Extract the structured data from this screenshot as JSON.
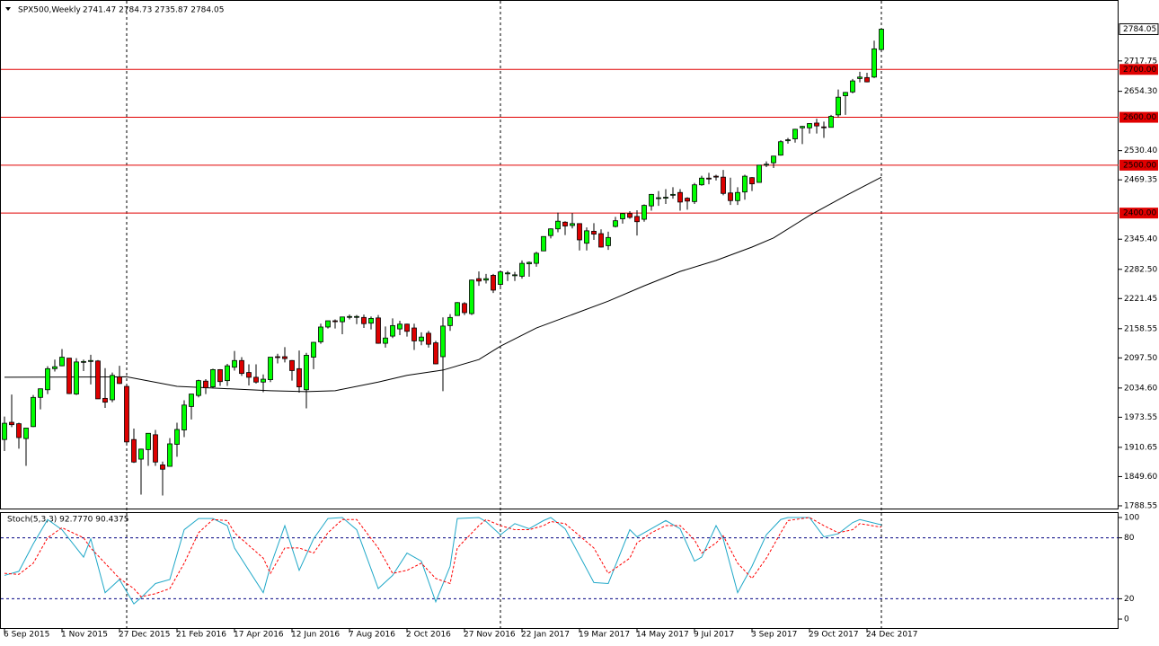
{
  "chart_data": [
    {
      "type": "candlestick",
      "title": "SPX500,Weekly",
      "subtitle": "2741.47 2784.73 2735.87 2784.05",
      "categories": [
        "6 Sep 2015",
        null,
        null,
        null,
        null,
        null,
        null,
        null,
        "1 Nov 2015",
        null,
        null,
        null,
        null,
        null,
        null,
        null,
        "27 Dec 2015",
        null,
        null,
        null,
        null,
        null,
        null,
        null,
        "21 Feb 2016",
        null,
        null,
        null,
        null,
        null,
        null,
        null,
        "17 Apr 2016",
        null,
        null,
        null,
        null,
        null,
        null,
        null,
        "12 Jun 2016",
        null,
        null,
        null,
        null,
        null,
        null,
        null,
        "7 Aug 2016",
        null,
        null,
        null,
        null,
        null,
        null,
        null,
        "2 Oct 2016",
        null,
        null,
        null,
        null,
        null,
        null,
        null,
        "27 Nov 2016",
        null,
        null,
        null,
        null,
        null,
        null,
        null,
        "22 Jan 2017",
        null,
        null,
        null,
        null,
        null,
        null,
        null,
        "19 Mar 2017",
        null,
        null,
        null,
        null,
        null,
        null,
        null,
        "14 May 2017",
        null,
        null,
        null,
        null,
        null,
        null,
        null,
        "9 Jul 2017",
        null,
        null,
        null,
        null,
        null,
        null,
        null,
        "3 Sep 2017",
        null,
        null,
        null,
        null,
        null,
        null,
        null,
        "29 Oct 2017",
        null,
        null,
        null,
        null,
        null,
        null,
        null,
        "24 Dec 2017",
        null,
        null
      ],
      "open": [
        1927,
        1963,
        1960,
        1929,
        1954,
        2015,
        2031,
        2075,
        2081,
        2097,
        2022,
        2089,
        2090,
        2091,
        2013,
        2010,
        2058,
        2038,
        1927,
        1886,
        1906,
        1937,
        1874,
        1871,
        1917,
        1947,
        1996,
        2019,
        2049,
        2037,
        2073,
        2050,
        2078,
        2092,
        2067,
        2057,
        2047,
        2052,
        2100,
        2100,
        2092,
        2075,
        2031,
        2099,
        2131,
        2162,
        2175,
        2173,
        2183,
        2184,
        2182,
        2170,
        2181,
        2128,
        2143,
        2158,
        2168,
        2160,
        2133,
        2149,
        2129,
        2100,
        2165,
        2186,
        2211,
        2190,
        2263,
        2260,
        2270,
        2251,
        2273,
        2270,
        2268,
        2294,
        2295,
        2321,
        2353,
        2367,
        2381,
        2374,
        2378,
        2337,
        2362,
        2357,
        2332,
        2372,
        2388,
        2399,
        2393,
        2387,
        2415,
        2432,
        2432,
        2439,
        2443,
        2431,
        2424,
        2459,
        2473,
        2477,
        2475,
        2442,
        2426,
        2444,
        2474,
        2464,
        2501,
        2505,
        2521,
        2551,
        2555,
        2578,
        2578,
        2588,
        2580,
        2579,
        2605,
        2645,
        2653,
        2681,
        2683,
        2684,
        2741.47
      ],
      "high": [
        1975,
        2021,
        1962,
        1951,
        2020,
        2033,
        2080,
        2094,
        2116,
        2097,
        2097,
        2094,
        2104,
        2093,
        2076,
        2067,
        2081,
        2038,
        1950,
        1908,
        1940,
        1947,
        1881,
        1930,
        1962,
        2009,
        2022,
        2052,
        2053,
        2075,
        2074,
        2085,
        2112,
        2099,
        2084,
        2084,
        2063,
        2099,
        2106,
        2120,
        2093,
        2113,
        2108,
        2131,
        2169,
        2175,
        2178,
        2183,
        2188,
        2187,
        2188,
        2184,
        2187,
        2163,
        2180,
        2175,
        2169,
        2169,
        2151,
        2154,
        2133,
        2182,
        2189,
        2214,
        2214,
        2261,
        2278,
        2273,
        2273,
        2277,
        2279,
        2277,
        2301,
        2299,
        2319,
        2351,
        2368,
        2401,
        2383,
        2400,
        2378,
        2370,
        2379,
        2366,
        2361,
        2392,
        2400,
        2404,
        2406,
        2418,
        2440,
        2446,
        2450,
        2454,
        2450,
        2433,
        2463,
        2478,
        2484,
        2480,
        2490,
        2474,
        2454,
        2480,
        2475,
        2500,
        2508,
        2519,
        2552,
        2557,
        2576,
        2582,
        2588,
        2597,
        2591,
        2605,
        2658,
        2653,
        2680,
        2695,
        2693,
        2760,
        2784.73
      ],
      "low": [
        1903,
        1953,
        1908,
        1872,
        1953,
        1990,
        2022,
        2069,
        2080,
        2022,
        2020,
        2070,
        2042,
        2012,
        1993,
        2005,
        2043,
        1918,
        1878,
        1812,
        1872,
        1872,
        1810,
        1871,
        1891,
        1932,
        1969,
        2015,
        2022,
        2034,
        2039,
        2039,
        2071,
        2060,
        2040,
        2044,
        2026,
        2047,
        2086,
        2088,
        2050,
        2025,
        1992,
        2074,
        2127,
        2159,
        2159,
        2147,
        2178,
        2168,
        2160,
        2157,
        2127,
        2119,
        2139,
        2145,
        2142,
        2114,
        2124,
        2119,
        2084,
        2028,
        2154,
        2186,
        2187,
        2187,
        2248,
        2253,
        2233,
        2245,
        2258,
        2258,
        2263,
        2267,
        2288,
        2321,
        2347,
        2360,
        2354,
        2368,
        2322,
        2322,
        2344,
        2328,
        2323,
        2370,
        2378,
        2388,
        2353,
        2382,
        2405,
        2415,
        2419,
        2430,
        2405,
        2407,
        2419,
        2457,
        2460,
        2468,
        2437,
        2417,
        2417,
        2428,
        2446,
        2464,
        2496,
        2494,
        2520,
        2545,
        2547,
        2544,
        2566,
        2566,
        2557,
        2579,
        2600,
        2605,
        2650,
        2673,
        2673,
        2682,
        2735.87
      ],
      "close": [
        1961,
        1958,
        1931,
        1951,
        2015,
        2033,
        2075,
        2079,
        2099,
        2023,
        2089,
        2090,
        2092,
        2012,
        2005,
        2061,
        2044,
        1922,
        1880,
        1907,
        1940,
        1880,
        1865,
        1918,
        1948,
        1999,
        2022,
        2050,
        2035,
        2073,
        2048,
        2081,
        2092,
        2065,
        2057,
        2047,
        2053,
        2099,
        2099,
        2096,
        2071,
        2037,
        2103,
        2130,
        2162,
        2175,
        2174,
        2183,
        2184,
        2184,
        2169,
        2180,
        2128,
        2139,
        2165,
        2168,
        2153,
        2133,
        2141,
        2126,
        2085,
        2164,
        2182,
        2213,
        2192,
        2260,
        2258,
        2263,
        2239,
        2277,
        2275,
        2271,
        2295,
        2297,
        2316,
        2351,
        2367,
        2383,
        2373,
        2378,
        2344,
        2363,
        2356,
        2329,
        2349,
        2384,
        2399,
        2391,
        2382,
        2416,
        2439,
        2432,
        2433,
        2439,
        2423,
        2425,
        2459,
        2473,
        2472,
        2476,
        2441,
        2426,
        2443,
        2477,
        2461,
        2500,
        2502,
        2519,
        2549,
        2553,
        2575,
        2581,
        2587,
        2582,
        2579,
        2602,
        2642,
        2652,
        2676,
        2684,
        2674,
        2743,
        2784.05
      ],
      "up_color": "#00ff00",
      "down_color": "#dd0000",
      "ylim": [
        1781,
        2845
      ],
      "yticks": [
        1788.55,
        {
          "value": 1849.6,
          "label": "1849.60"
        },
        1910.65,
        1973.55,
        {
          "value": 2034.6,
          "label": "2034.60"
        },
        {
          "value": 2097.5,
          "label": "2097.50"
        },
        2158.55,
        2221.45,
        {
          "value": 2282.5,
          "label": "2282.50"
        },
        {
          "value": 2345.4,
          "label": "2345.40"
        },
        2469.35,
        {
          "value": 2530.4,
          "label": "2530.40"
        },
        {
          "value": 2654.3,
          "label": "2654.30"
        },
        2717.75
      ],
      "levels": [
        {
          "value": 2700,
          "label": "2700.00"
        },
        {
          "value": 2600,
          "label": "2600.00"
        },
        {
          "value": 2500,
          "label": "2500.00"
        },
        {
          "value": 2400,
          "label": "2400.00"
        }
      ],
      "level_color": "#e00000",
      "ma": {
        "x": [
          0,
          17,
          24,
          37,
          42,
          46,
          52,
          56,
          61,
          66,
          69,
          74,
          79,
          84,
          89,
          94,
          99,
          104,
          107,
          112,
          117,
          122
        ],
        "values": [
          2057,
          2058,
          2038,
          2029,
          2027,
          2029,
          2047,
          2061,
          2072,
          2094,
          2122,
          2160,
          2188,
          2216,
          2248,
          2278,
          2301,
          2329,
          2348,
          2395,
          2436,
          2475
        ],
        "color": "#000000"
      }
    },
    {
      "type": "line",
      "title": "Stoch(5,3,3) 92.7770 90.4375",
      "x": [
        0,
        2,
        4,
        6,
        8,
        11,
        12,
        14,
        16,
        18,
        19,
        21,
        23,
        25,
        27,
        29,
        31,
        32,
        36,
        37,
        39,
        41,
        43,
        45,
        47,
        49,
        52,
        54,
        56,
        58,
        60,
        62,
        63,
        66,
        67,
        69,
        71,
        73,
        75,
        76,
        78,
        82,
        84,
        87,
        88,
        90,
        92,
        94,
        96,
        97,
        99,
        100,
        102,
        104,
        106,
        108,
        109,
        112,
        114,
        116,
        118,
        119,
        122
      ],
      "series": [
        {
          "color": "#20a8c8",
          "values": [
            43,
            47,
            74,
            98,
            88,
            61,
            79,
            26,
            39,
            15,
            21,
            35,
            39,
            88,
            99,
            99,
            92,
            70,
            26,
            52,
            92,
            48,
            79,
            99,
            100,
            88,
            30,
            43,
            65,
            57,
            17,
            52,
            99,
            100,
            96,
            83,
            94,
            89,
            97,
            100,
            89,
            36,
            35,
            88,
            81,
            89,
            97,
            89,
            57,
            61,
            92,
            79,
            26,
            52,
            83,
            98,
            100,
            100,
            81,
            84,
            95,
            98,
            92.777
          ]
        },
        {
          "color": "#ff0000",
          "dashed": true,
          "values": [
            45,
            44,
            55,
            80,
            90,
            80,
            70,
            55,
            40,
            30,
            22,
            25,
            30,
            55,
            85,
            98,
            97,
            85,
            60,
            45,
            70,
            70,
            65,
            85,
            98,
            98,
            70,
            45,
            48,
            55,
            40,
            35,
            70,
            92,
            98,
            92,
            88,
            88,
            92,
            96,
            94,
            70,
            45,
            60,
            75,
            85,
            92,
            92,
            78,
            65,
            75,
            82,
            55,
            40,
            60,
            85,
            97,
            100,
            92,
            85,
            88,
            94,
            90.4375
          ]
        }
      ],
      "ylim": [
        -9.7,
        105.3
      ],
      "yticks": [
        100,
        80,
        20,
        0
      ],
      "levels": [
        80,
        20
      ],
      "level_color": "#000080"
    }
  ]
}
